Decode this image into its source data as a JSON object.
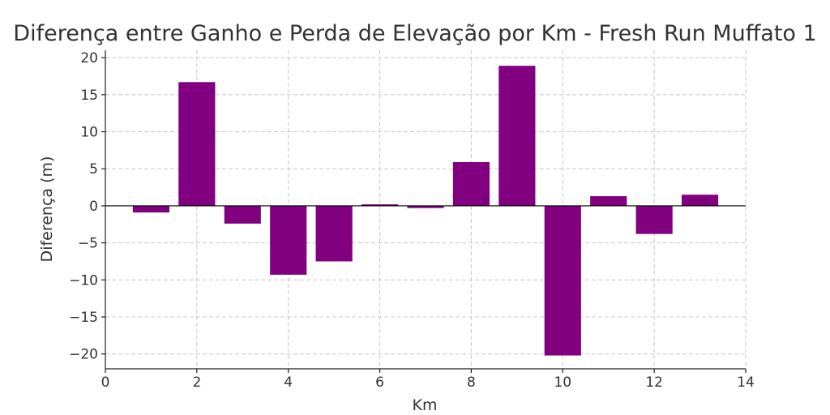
{
  "chart_data": {
    "type": "bar",
    "title": "Diferença entre Ganho e Perda de Elevação por Km - Fresh Run Muffato 1",
    "xlabel": "Km",
    "ylabel": "Diferença (m)",
    "categories": [
      1,
      2,
      3,
      4,
      5,
      6,
      7,
      8,
      9,
      10,
      11,
      12,
      13
    ],
    "values": [
      -0.9,
      16.7,
      -2.4,
      -9.3,
      -7.5,
      0.2,
      -0.3,
      5.9,
      18.9,
      -20.2,
      1.3,
      -3.8,
      1.5
    ],
    "xlim": [
      0,
      14
    ],
    "ylim": [
      -22,
      21
    ],
    "xticks": [
      0,
      2,
      4,
      6,
      8,
      10,
      12,
      14
    ],
    "yticks": [
      -20,
      -15,
      -10,
      -5,
      0,
      5,
      10,
      15,
      20
    ],
    "xtick_labels": [
      "0",
      "2",
      "4",
      "6",
      "8",
      "10",
      "12",
      "14"
    ],
    "ytick_labels": [
      "−20",
      "−15",
      "−10",
      "−5",
      "0",
      "5",
      "10",
      "15",
      "20"
    ],
    "bar_color": "#800080",
    "grid": true,
    "zero_line": true
  }
}
